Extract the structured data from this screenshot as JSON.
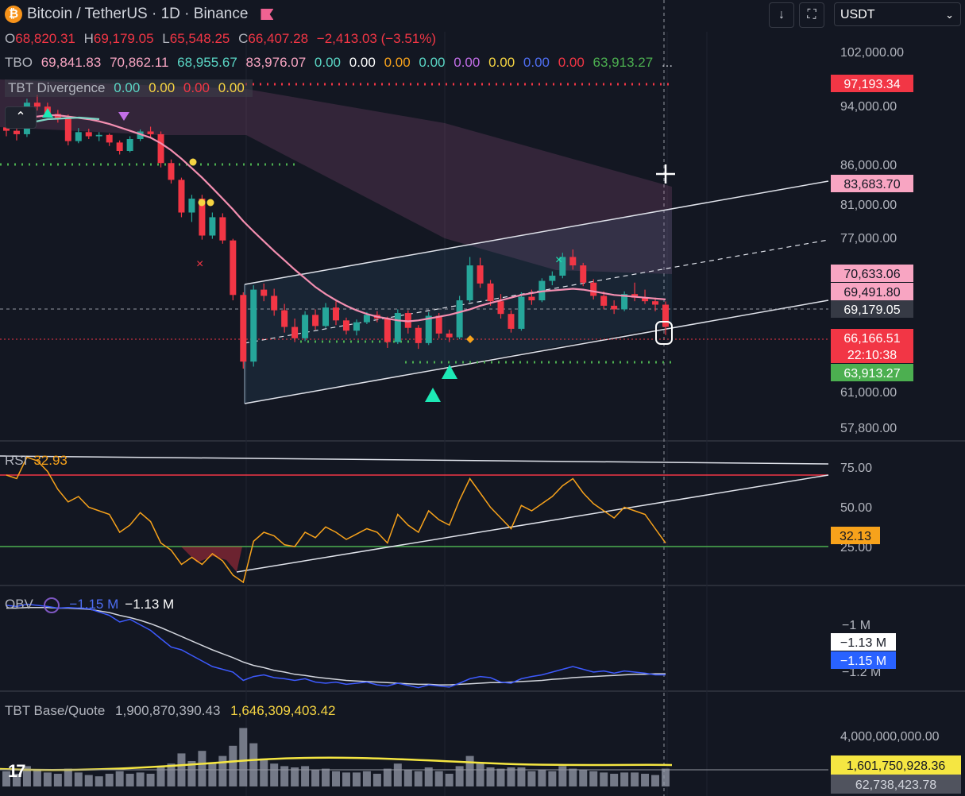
{
  "header": {
    "symbol_title": "Bitcoin / TetherUS · 1D · Binance",
    "ohlc": {
      "o_label": "O",
      "o": "68,820.31",
      "h_label": "H",
      "h": "69,179.05",
      "l_label": "L",
      "l": "65,548.25",
      "c_label": "C",
      "c": "66,407.28",
      "change": "−2,413.03 (−3.51%)"
    },
    "tbo": {
      "label": "TBO",
      "values": [
        "69,841.83",
        "70,862.11",
        "68,955.67",
        "83,976.07",
        "0.00",
        "0.00",
        "0.00",
        "0.00",
        "0.00",
        "0.00",
        "0.00",
        "0.00",
        "63,913.27"
      ],
      "more": "..."
    },
    "tbt_divergence": {
      "label": "TBT Divergence",
      "values": [
        "0.00",
        "0.00",
        "0.00",
        "0.00"
      ]
    }
  },
  "toolbar": {
    "download_icon": "arrow-down-icon",
    "fullscreen_icon": "fullscreen-icon",
    "currency_select": "USDT"
  },
  "colors": {
    "up": "#26a69a",
    "down": "#f23645",
    "ma": "#f48fb1",
    "rsi": "#f7a21b",
    "obv": "#3d5afe",
    "volume_line": "#f5e642"
  },
  "price_axis": {
    "ticks": [
      "102,000.00",
      "94,000.00",
      "86,000.00",
      "81,000.00",
      "77,000.00",
      "61,000.00",
      "57,800.00"
    ],
    "badges": [
      {
        "text": "97,193.34",
        "color": "#f23645"
      },
      {
        "text": "83,683.70",
        "color": "#f8a5c2"
      },
      {
        "text": "70,633.06",
        "color": "#f8a5c2"
      },
      {
        "text": "69,491.80",
        "color": "#f8a5c2"
      },
      {
        "text": "69,179.05",
        "color": "#363a45"
      },
      {
        "text": "66,166.51",
        "color": "#f23645"
      },
      {
        "text": "22:10:38",
        "color": "#f23645"
      },
      {
        "text": "63,913.27",
        "color": "#4caf50"
      }
    ]
  },
  "rsi": {
    "label": "RSI",
    "value": "32.93",
    "last": "32.13",
    "ticks": [
      "75.00",
      "50.00",
      "25.00"
    ],
    "upper": 70,
    "lower": 30
  },
  "obv": {
    "label": "OBV",
    "value1": "−1.15 M",
    "value2": "−1.13 M",
    "ticks": [
      "−1 M",
      "−1.2 M"
    ],
    "badge_white": "−1.13 M",
    "badge_blue": "−1.15 M"
  },
  "base_quote": {
    "label": "TBT Base/Quote",
    "value1": "1,900,870,390.43",
    "value2": "1,646,309,403.42",
    "tick": "4,000,000,000.00",
    "badge_yellow": "1,601,750,928.36",
    "badge_grey": "62,738,423.78"
  },
  "logo_text": "17",
  "chart_data": {
    "type": "candlestick",
    "ylim": [
      56000,
      104000
    ],
    "candles": [
      [
        91500,
        92300,
        90200,
        91000
      ],
      [
        91000,
        91800,
        89600,
        90500
      ],
      [
        90500,
        95800,
        90100,
        95200
      ],
      [
        95200,
        96400,
        94000,
        94600
      ],
      [
        94600,
        95200,
        93000,
        93500
      ],
      [
        93500,
        94100,
        92200,
        92800
      ],
      [
        92800,
        93400,
        88900,
        89500
      ],
      [
        89500,
        91400,
        89200,
        90800
      ],
      [
        90800,
        91300,
        89800,
        90200
      ],
      [
        90200,
        90800,
        89500,
        90400
      ],
      [
        90400,
        90600,
        88800,
        89300
      ],
      [
        89300,
        89600,
        87600,
        88100
      ],
      [
        88100,
        90200,
        87900,
        89800
      ],
      [
        89800,
        91200,
        89500,
        90900
      ],
      [
        90900,
        91600,
        90100,
        90500
      ],
      [
        90500,
        90900,
        85800,
        86400
      ],
      [
        86400,
        86900,
        83600,
        84100
      ],
      [
        84100,
        84400,
        79200,
        79800
      ],
      [
        79800,
        82100,
        78600,
        81600
      ],
      [
        81600,
        82100,
        76400,
        76900
      ],
      [
        76900,
        79800,
        76500,
        79200
      ],
      [
        79200,
        79700,
        75900,
        76300
      ],
      [
        76300,
        76500,
        69300,
        69900
      ],
      [
        69900,
        70200,
        62100,
        62800
      ],
      [
        62800,
        71000,
        62300,
        70500
      ],
      [
        70500,
        71200,
        69200,
        69800
      ],
      [
        69800,
        70600,
        67600,
        68200
      ],
      [
        68200,
        68900,
        65800,
        66400
      ],
      [
        66400,
        67300,
        64800,
        65200
      ],
      [
        65200,
        68100,
        64900,
        67700
      ],
      [
        67700,
        68300,
        66100,
        66500
      ],
      [
        66500,
        69000,
        66300,
        68500
      ],
      [
        68500,
        69200,
        66600,
        67100
      ],
      [
        67100,
        67400,
        65600,
        66000
      ],
      [
        66000,
        67200,
        65500,
        66900
      ],
      [
        66900,
        68000,
        66700,
        67700
      ],
      [
        67700,
        68100,
        66900,
        67300
      ],
      [
        67300,
        67500,
        64200,
        64800
      ],
      [
        64800,
        68300,
        64600,
        67900
      ],
      [
        67900,
        68200,
        65700,
        66300
      ],
      [
        66300,
        66600,
        64100,
        64700
      ],
      [
        64700,
        68000,
        64500,
        67600
      ],
      [
        67600,
        67900,
        65200,
        65700
      ],
      [
        65700,
        66100,
        64800,
        65300
      ],
      [
        65300,
        69800,
        65100,
        69300
      ],
      [
        69300,
        74300,
        69100,
        73300
      ],
      [
        73300,
        74200,
        70700,
        71200
      ],
      [
        71200,
        71600,
        68700,
        69200
      ],
      [
        69200,
        70000,
        67300,
        67800
      ],
      [
        67800,
        68200,
        65800,
        66200
      ],
      [
        66200,
        70200,
        66000,
        69700
      ],
      [
        69700,
        70500,
        68800,
        69300
      ],
      [
        69300,
        71800,
        69100,
        71500
      ],
      [
        71500,
        72600,
        71000,
        72100
      ],
      [
        72100,
        74800,
        71800,
        74300
      ],
      [
        74300,
        75200,
        72800,
        73300
      ],
      [
        73300,
        73600,
        70900,
        71300
      ],
      [
        71300,
        71700,
        69400,
        69800
      ],
      [
        69800,
        70300,
        68300,
        68700
      ],
      [
        68700,
        69300,
        67800,
        68300
      ],
      [
        68300,
        70300,
        68100,
        70000
      ],
      [
        70000,
        71300,
        69200,
        69600
      ],
      [
        69600,
        70500,
        68900,
        69200
      ],
      [
        69200,
        69600,
        68100,
        68820
      ],
      [
        68820,
        69179,
        65548,
        66407
      ]
    ],
    "ma": [
      93200,
      93000,
      92900,
      93100,
      93300,
      93300,
      93100,
      92900,
      92700,
      92400,
      92000,
      91500,
      91000,
      90500,
      90000,
      89200,
      88200,
      87000,
      85700,
      84400,
      83000,
      81600,
      80200,
      78700,
      77400,
      76200,
      75000,
      73900,
      72800,
      71800,
      70800,
      70000,
      69300,
      68700,
      68200,
      67800,
      67500,
      67300,
      67100,
      67000,
      67100,
      67300,
      67500,
      67700,
      68000,
      68300,
      68700,
      69000,
      69300,
      69600,
      69900,
      70100,
      70300,
      70400,
      70500,
      70600,
      70500,
      70300,
      70100,
      69900,
      69800,
      69700,
      69600,
      69500,
      69400
    ],
    "rsi": [
      70,
      68,
      80,
      78,
      72,
      62,
      55,
      58,
      52,
      50,
      48,
      38,
      42,
      49,
      44,
      32,
      28,
      20,
      24,
      20,
      26,
      22,
      14,
      10,
      33,
      38,
      36,
      31,
      30,
      38,
      35,
      41,
      38,
      34,
      37,
      40,
      38,
      32,
      48,
      42,
      38,
      50,
      45,
      42,
      56,
      68,
      60,
      52,
      46,
      40,
      53,
      50,
      54,
      58,
      64,
      68,
      60,
      54,
      50,
      46,
      52,
      50,
      48,
      40,
      32
    ],
    "obv": [
      0.1,
      0.08,
      0.12,
      0.1,
      0.08,
      0.05,
      0.06,
      0.05,
      0.04,
      -0.02,
      -0.08,
      -0.2,
      -0.15,
      -0.25,
      -0.35,
      -0.5,
      -0.65,
      -0.7,
      -0.8,
      -0.9,
      -1.0,
      -1.05,
      -1.1,
      -1.25,
      -1.18,
      -1.15,
      -1.2,
      -1.22,
      -1.25,
      -1.22,
      -1.28,
      -1.3,
      -1.28,
      -1.32,
      -1.3,
      -1.28,
      -1.33,
      -1.35,
      -1.3,
      -1.34,
      -1.38,
      -1.33,
      -1.35,
      -1.37,
      -1.3,
      -1.22,
      -1.18,
      -1.2,
      -1.28,
      -1.3,
      -1.22,
      -1.18,
      -1.15,
      -1.1,
      -1.05,
      -1.0,
      -1.05,
      -1.1,
      -1.08,
      -1.12,
      -1.08,
      -1.1,
      -1.12,
      -1.15,
      -1.15
    ],
    "obv_ma": [
      0.05,
      0.05,
      0.06,
      0.06,
      0.06,
      0.05,
      0.05,
      0.04,
      0.03,
      0.0,
      -0.03,
      -0.08,
      -0.12,
      -0.17,
      -0.23,
      -0.3,
      -0.38,
      -0.46,
      -0.54,
      -0.62,
      -0.7,
      -0.77,
      -0.84,
      -0.92,
      -0.98,
      -1.02,
      -1.07,
      -1.1,
      -1.14,
      -1.16,
      -1.19,
      -1.21,
      -1.23,
      -1.25,
      -1.26,
      -1.27,
      -1.28,
      -1.29,
      -1.3,
      -1.31,
      -1.32,
      -1.32,
      -1.33,
      -1.33,
      -1.32,
      -1.31,
      -1.3,
      -1.29,
      -1.29,
      -1.28,
      -1.27,
      -1.26,
      -1.25,
      -1.23,
      -1.22,
      -1.2,
      -1.19,
      -1.18,
      -1.17,
      -1.16,
      -1.15,
      -1.14,
      -1.14,
      -1.13,
      -1.13
    ],
    "volume": [
      1.2,
      1.0,
      1.6,
      1.3,
      1.1,
      1.0,
      1.4,
      1.1,
      0.9,
      0.8,
      1.0,
      1.2,
      1.0,
      1.1,
      1.0,
      1.6,
      1.8,
      2.6,
      2.0,
      2.8,
      1.9,
      2.4,
      3.2,
      4.6,
      3.4,
      2.2,
      1.8,
      1.6,
      1.5,
      1.6,
      1.3,
      1.4,
      1.2,
      1.1,
      1.1,
      1.2,
      1.0,
      1.4,
      1.8,
      1.3,
      1.2,
      1.5,
      1.2,
      1.0,
      1.6,
      2.4,
      1.8,
      1.5,
      1.4,
      1.5,
      1.5,
      1.2,
      1.3,
      1.2,
      1.6,
      1.4,
      1.3,
      1.2,
      1.1,
      1.0,
      1.1,
      1.1,
      1.0,
      0.9,
      1.4
    ]
  }
}
